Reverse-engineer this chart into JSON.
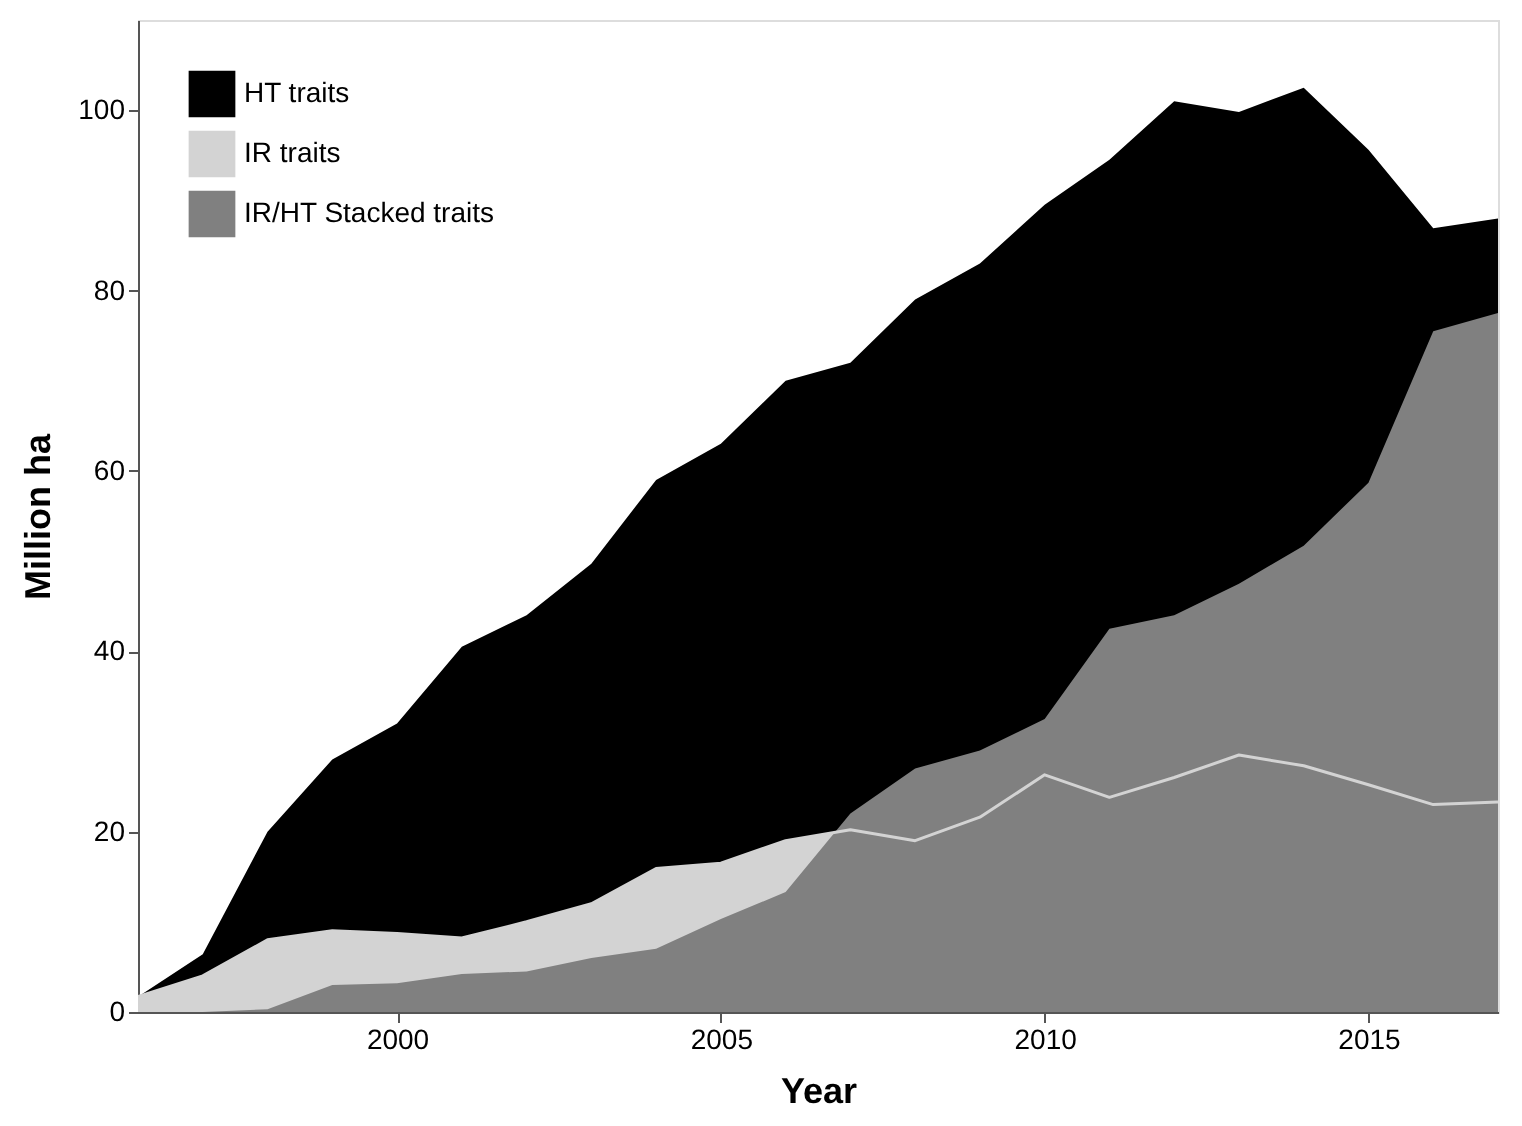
{
  "chart_data": {
    "type": "area",
    "xlabel": "Year",
    "ylabel": "Million ha",
    "x": [
      1996,
      1997,
      1998,
      1999,
      2000,
      2001,
      2002,
      2003,
      2004,
      2005,
      2006,
      2007,
      2008,
      2009,
      2010,
      2011,
      2012,
      2013,
      2014,
      2015,
      2016,
      2017
    ],
    "series": [
      {
        "name": "HT traits",
        "color": "#000000",
        "values": [
          1.7,
          6.4,
          20,
          28,
          32,
          40.5,
          44,
          49.7,
          59,
          63,
          70,
          72,
          79,
          83,
          89.5,
          94.5,
          101,
          99.8,
          102.5,
          95.6,
          86.9,
          88
        ]
      },
      {
        "name": "IR traits",
        "color": "#d3d3d3",
        "values": [
          1.7,
          4,
          8,
          9,
          8.7,
          8.2,
          10,
          12,
          15.9,
          16.5,
          19,
          20.2,
          19,
          21.6,
          26.3,
          23.8,
          26,
          28.5,
          27.3,
          25.2,
          23,
          23.3
        ]
      },
      {
        "name": "IR/HT Stacked traits",
        "color": "#808080",
        "values": [
          0,
          0,
          0.3,
          3,
          3.2,
          4.2,
          4.5,
          6,
          7,
          10.3,
          13.3,
          22,
          27,
          29,
          32.5,
          42.5,
          44,
          47.5,
          51.7,
          58.7,
          75.5,
          77.5
        ]
      }
    ],
    "xlim": [
      1996,
      2017
    ],
    "xticks": [
      2000,
      2005,
      2010,
      2015
    ],
    "ylim": [
      0,
      110
    ],
    "yticks": [
      0,
      20,
      40,
      60,
      80,
      100
    ],
    "grid": false,
    "legend": "top left",
    "marker": "none"
  }
}
